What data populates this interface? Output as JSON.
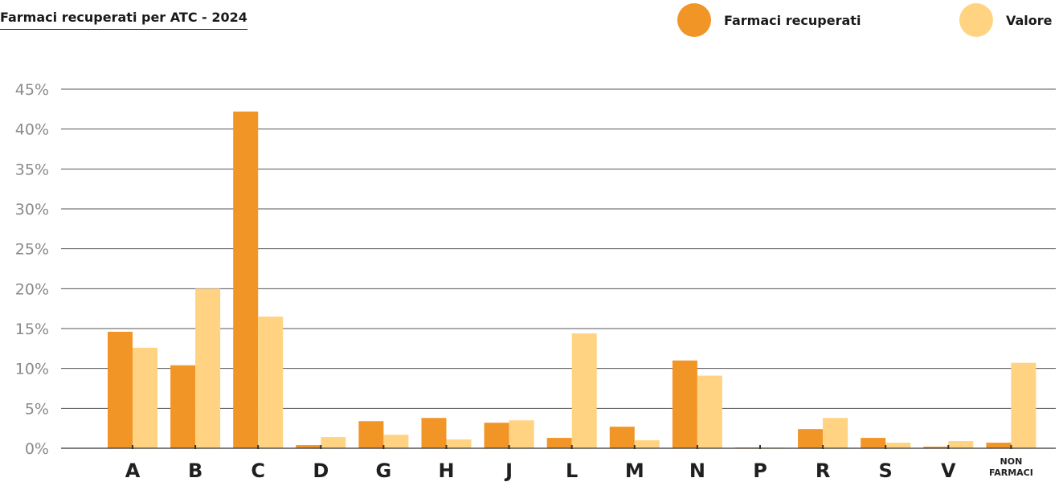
{
  "chart_data": {
    "type": "bar",
    "title": "Farmaci recuperati per ATC - 2024",
    "categories": [
      "A",
      "B",
      "C",
      "D",
      "G",
      "H",
      "J",
      "L",
      "M",
      "N",
      "P",
      "R",
      "S",
      "V",
      "NON FARMACI"
    ],
    "series": [
      {
        "name": "Farmaci recuperati",
        "color": "#F29527",
        "values": [
          14.6,
          10.4,
          42.2,
          0.4,
          3.4,
          3.8,
          3.2,
          1.3,
          2.7,
          11.0,
          0.1,
          2.4,
          1.3,
          0.2,
          0.7
        ]
      },
      {
        "name": "Valore",
        "color": "#FFD382",
        "values": [
          12.6,
          20.0,
          16.5,
          1.4,
          1.7,
          1.1,
          3.5,
          14.4,
          1.0,
          9.1,
          0.1,
          3.8,
          0.7,
          0.9,
          10.7
        ]
      }
    ],
    "yticks": [
      "0%",
      "5%",
      "10%",
      "15%",
      "20%",
      "25%",
      "30%",
      "35%",
      "40%",
      "45%"
    ],
    "ylim": [
      0,
      45
    ],
    "xlabel": "",
    "ylabel": "",
    "grid": true,
    "legend": "top-right"
  }
}
